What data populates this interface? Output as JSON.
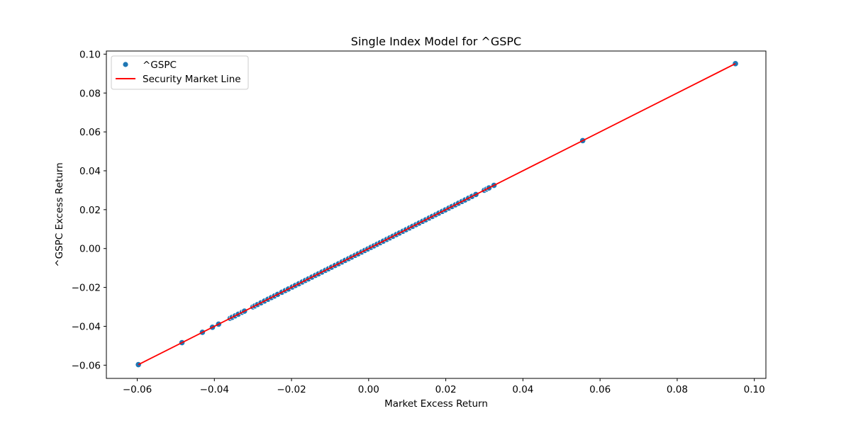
{
  "chart_data": {
    "type": "scatter",
    "title": "Single Index Model for ^GSPC",
    "xlabel": "Market Excess Return",
    "ylabel": "^GSPC Excess Return",
    "xlim": [
      -0.068,
      0.103
    ],
    "ylim": [
      -0.0668,
      0.1016
    ],
    "x_ticks": [
      -0.06,
      -0.04,
      -0.02,
      0.0,
      0.02,
      0.04,
      0.06,
      0.08,
      0.1
    ],
    "x_tick_labels": [
      "−0.06",
      "−0.04",
      "−0.02",
      "0.00",
      "0.02",
      "0.04",
      "0.06",
      "0.08",
      "0.10"
    ],
    "y_ticks": [
      -0.06,
      -0.04,
      -0.02,
      0.0,
      0.02,
      0.04,
      0.06,
      0.08,
      0.1
    ],
    "y_tick_labels": [
      "−0.06",
      "−0.04",
      "−0.02",
      "0.00",
      "0.02",
      "0.04",
      "0.06",
      "0.08",
      "0.10"
    ],
    "grid": false,
    "legend_position": "top-left",
    "series": [
      {
        "name": "^GSPC",
        "kind": "scatter",
        "color": "#1f77b4",
        "x": [
          -0.0597,
          -0.0484,
          -0.0431,
          -0.0405,
          -0.0389,
          -0.0359,
          -0.0354,
          -0.0346,
          -0.0338,
          -0.0328,
          -0.0322,
          -0.03,
          -0.0295,
          -0.0288,
          -0.0279,
          -0.027,
          -0.0261,
          -0.0252,
          -0.0244,
          -0.0236,
          -0.0225,
          -0.0216,
          -0.0208,
          -0.0198,
          -0.019,
          -0.0181,
          -0.0172,
          -0.0164,
          -0.0156,
          -0.0147,
          -0.0138,
          -0.013,
          -0.0121,
          -0.0112,
          -0.0104,
          -0.0096,
          -0.0087,
          -0.0078,
          -0.0069,
          -0.0061,
          -0.0052,
          -0.0044,
          -0.0035,
          -0.0027,
          -0.0018,
          -0.001,
          -0.0002,
          0.0006,
          0.0014,
          0.0022,
          0.003,
          0.0038,
          0.0047,
          0.0055,
          0.0063,
          0.0072,
          0.008,
          0.0089,
          0.0097,
          0.0106,
          0.0114,
          0.0123,
          0.0131,
          0.014,
          0.0148,
          0.0157,
          0.0165,
          0.0174,
          0.0182,
          0.0191,
          0.0199,
          0.0208,
          0.0216,
          0.0225,
          0.0233,
          0.0242,
          0.025,
          0.0259,
          0.0268,
          0.0278,
          0.03,
          0.0306,
          0.0312,
          0.0325,
          0.0555,
          0.0951
        ],
        "y": [
          -0.0597,
          -0.0484,
          -0.0431,
          -0.0405,
          -0.0389,
          -0.0359,
          -0.0354,
          -0.0346,
          -0.0338,
          -0.0328,
          -0.0322,
          -0.03,
          -0.0295,
          -0.0288,
          -0.0279,
          -0.027,
          -0.0261,
          -0.0252,
          -0.0244,
          -0.0236,
          -0.0225,
          -0.0216,
          -0.0208,
          -0.0198,
          -0.019,
          -0.0181,
          -0.0172,
          -0.0164,
          -0.0156,
          -0.0147,
          -0.0138,
          -0.013,
          -0.0121,
          -0.0112,
          -0.0104,
          -0.0096,
          -0.0087,
          -0.0078,
          -0.0069,
          -0.0061,
          -0.0052,
          -0.0044,
          -0.0035,
          -0.0027,
          -0.0018,
          -0.001,
          -0.0002,
          0.0006,
          0.0014,
          0.0022,
          0.003,
          0.0038,
          0.0047,
          0.0055,
          0.0063,
          0.0072,
          0.008,
          0.0089,
          0.0097,
          0.0106,
          0.0114,
          0.0123,
          0.0131,
          0.014,
          0.0148,
          0.0157,
          0.0165,
          0.0174,
          0.0182,
          0.0191,
          0.0199,
          0.0208,
          0.0216,
          0.0225,
          0.0233,
          0.0242,
          0.025,
          0.0259,
          0.0268,
          0.0278,
          0.03,
          0.0306,
          0.0312,
          0.0325,
          0.0555,
          0.0951
        ]
      },
      {
        "name": "Security Market Line",
        "kind": "line",
        "color": "#ff0000",
        "x": [
          -0.0597,
          0.0951
        ],
        "y": [
          -0.0597,
          0.0951
        ]
      }
    ]
  }
}
